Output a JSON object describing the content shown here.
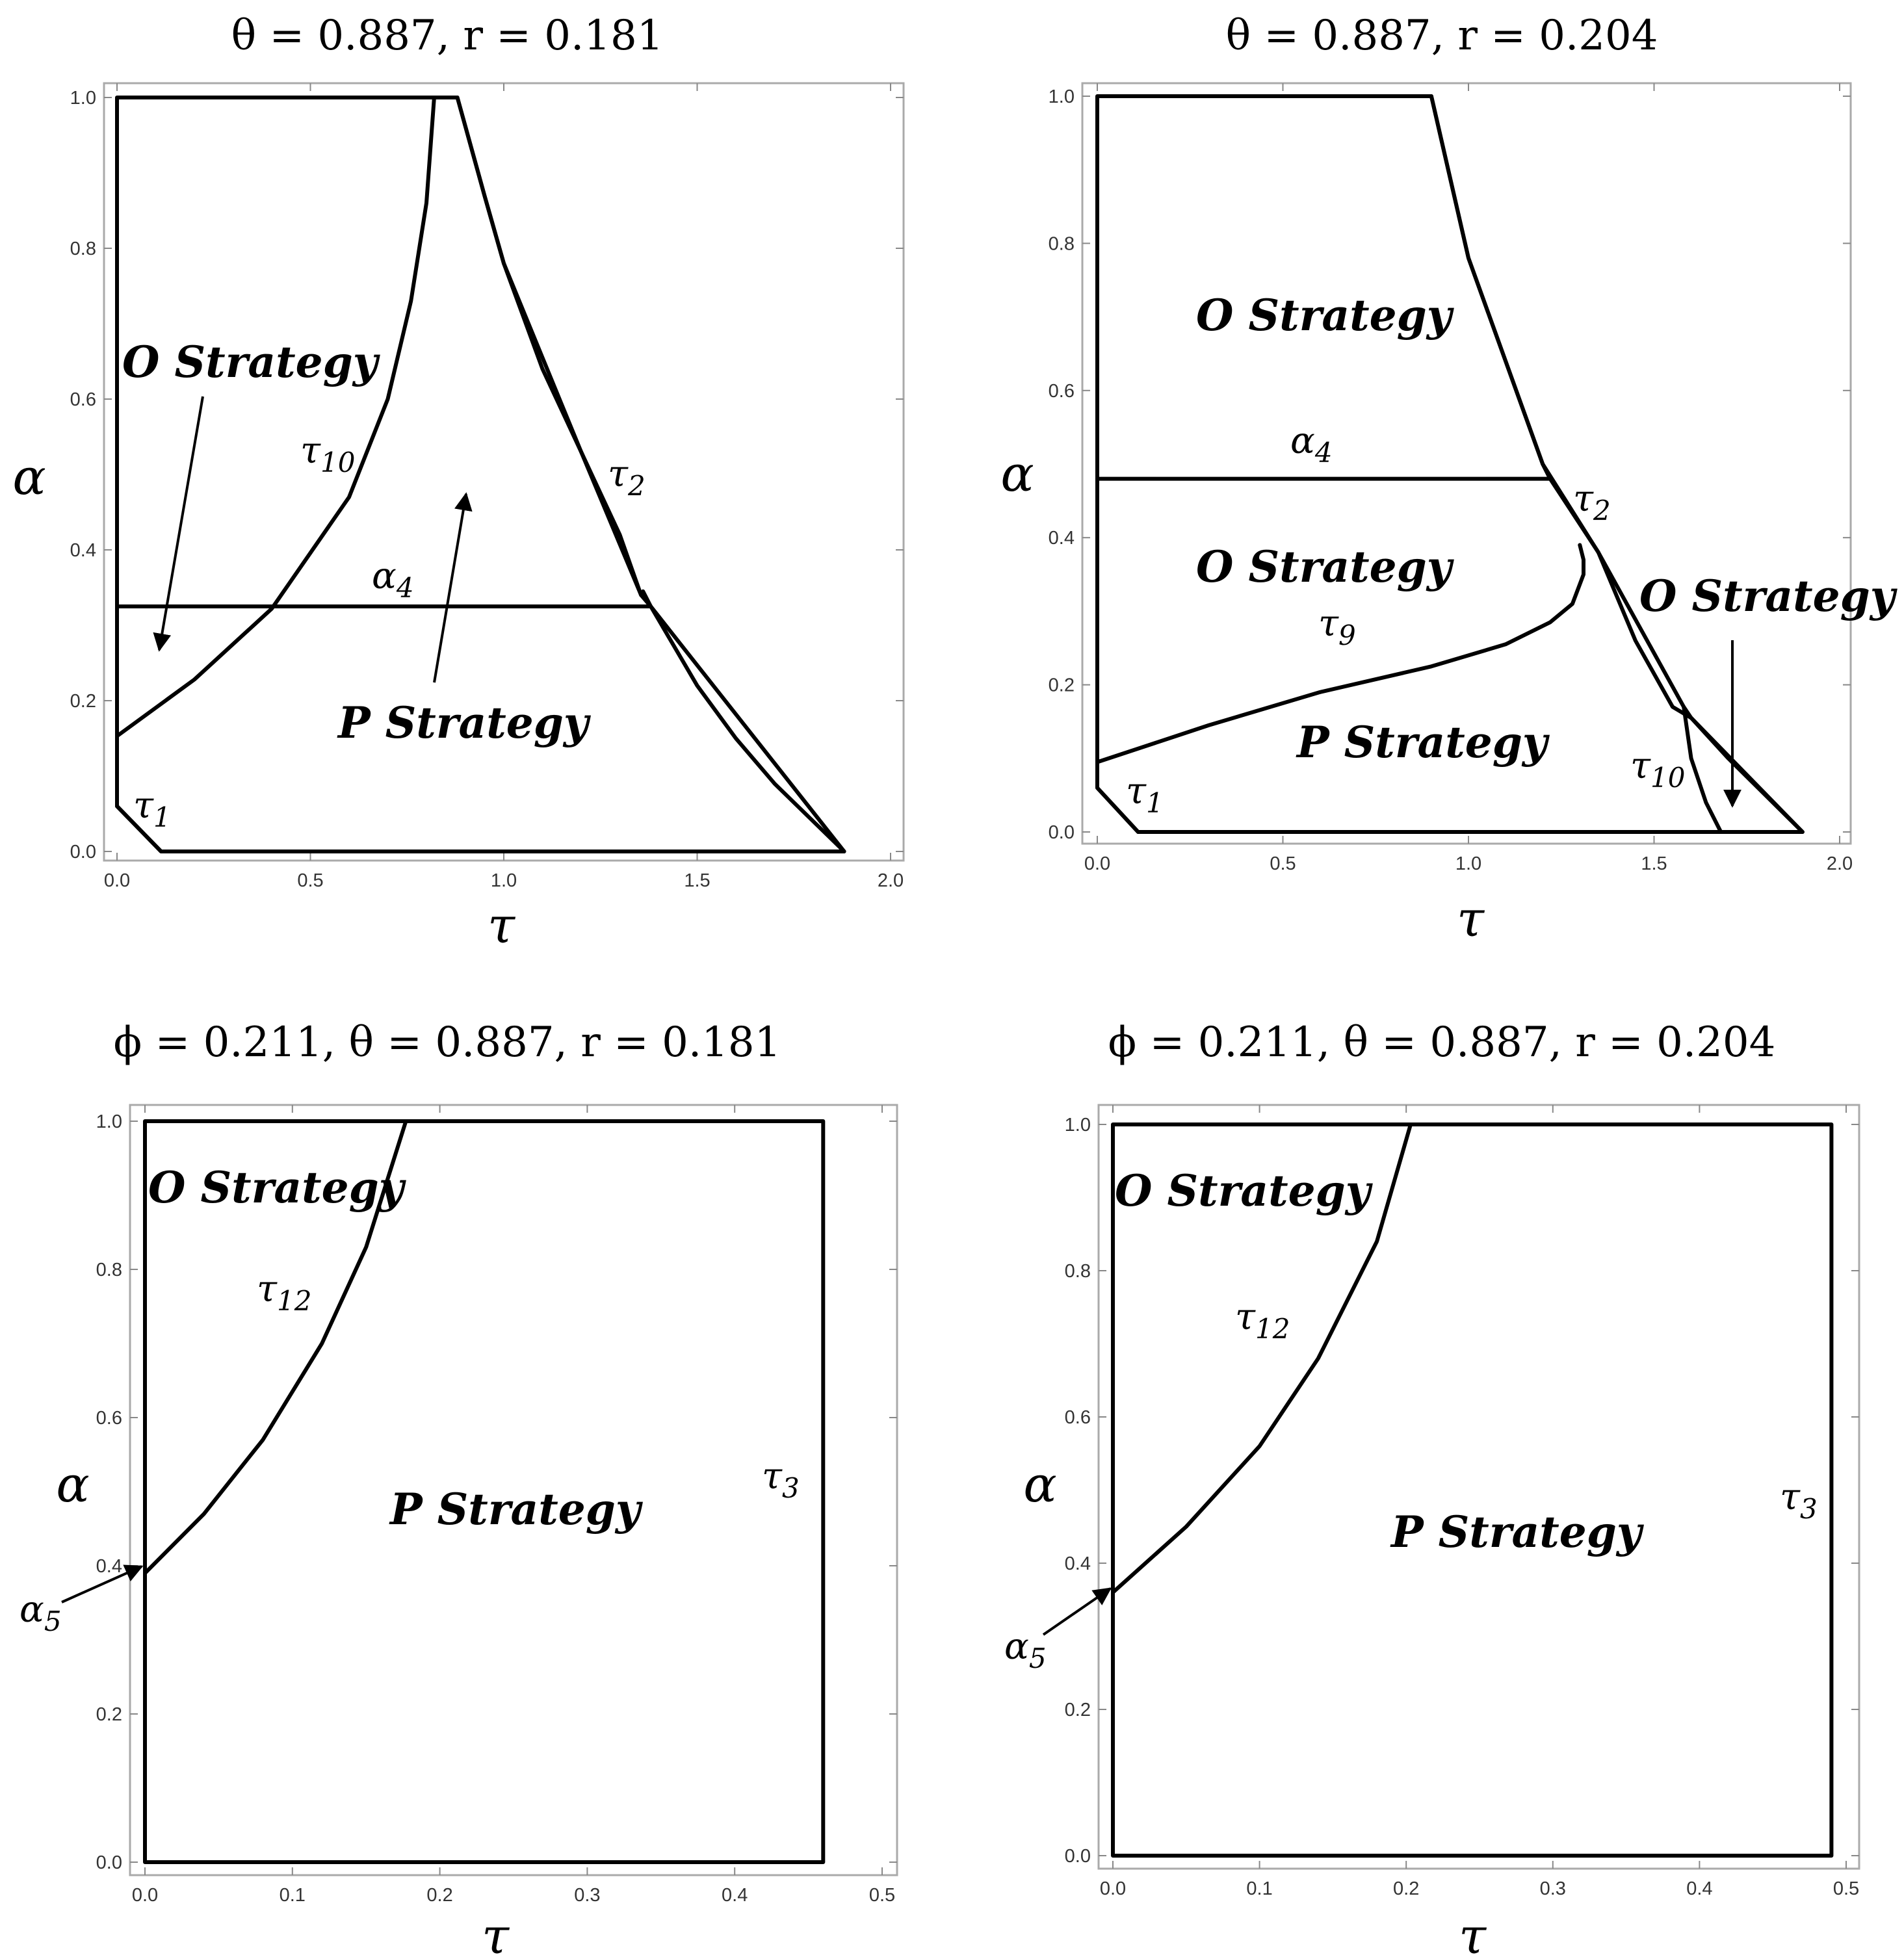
{
  "chart_data": [
    {
      "type": "line",
      "title": "θ = 0.887, r = 0.181",
      "xlabel": "τ",
      "ylabel": "α",
      "xlim": [
        0,
        2.0
      ],
      "ylim": [
        0,
        1.0
      ],
      "xticks": [
        "0.0",
        "0.5",
        "1.0",
        "1.5",
        "2.0"
      ],
      "yticks": [
        "0.0",
        "0.2",
        "0.4",
        "0.6",
        "0.8",
        "1.0"
      ],
      "grid": false,
      "series": [
        {
          "name": "boundary",
          "x": [
            0.0,
            0.0,
            0.114,
            1.88,
            1.38,
            1.36,
            1.355,
            1.2,
            1.0,
            0.95,
            0.88,
            0.82,
            0.0
          ],
          "y": [
            1.0,
            0.06,
            0.0,
            0.0,
            0.325,
            0.345,
            0.34,
            0.53,
            0.78,
            0.87,
            1.0,
            1.0,
            1.0
          ]
        },
        {
          "name": "τ1",
          "x": [
            0.0,
            0.114
          ],
          "y": [
            0.06,
            0.0
          ]
        },
        {
          "name": "τ10",
          "x": [
            0.0,
            0.2,
            0.4,
            0.6,
            0.7,
            0.76,
            0.8,
            0.82
          ],
          "y": [
            0.153,
            0.228,
            0.322,
            0.47,
            0.6,
            0.73,
            0.86,
            1.0
          ]
        },
        {
          "name": "τ2",
          "x": [
            0.88,
            0.95,
            1.0,
            1.1,
            1.2,
            1.3,
            1.355,
            1.38,
            1.5,
            1.6,
            1.7,
            1.8,
            1.88
          ],
          "y": [
            1.0,
            0.87,
            0.78,
            0.64,
            0.53,
            0.42,
            0.34,
            0.325,
            0.22,
            0.15,
            0.09,
            0.04,
            0.0
          ]
        },
        {
          "name": "α4",
          "x": [
            0.0,
            1.38
          ],
          "y": [
            0.325,
            0.325
          ]
        }
      ],
      "labels": [
        {
          "kind": "region",
          "text": "O Strategy"
        },
        {
          "kind": "region",
          "text": "P Strategy"
        },
        {
          "kind": "curve",
          "base": "τ",
          "sub": "10"
        },
        {
          "kind": "curve",
          "base": "τ",
          "sub": "2"
        },
        {
          "kind": "curve",
          "base": "α",
          "sub": "4"
        },
        {
          "kind": "curve",
          "base": "τ",
          "sub": "1"
        }
      ]
    },
    {
      "type": "line",
      "title": "θ = 0.887, r = 0.204",
      "xlabel": "τ",
      "ylabel": "α",
      "xlim": [
        0,
        2.0
      ],
      "ylim": [
        0,
        1.0
      ],
      "xticks": [
        "0.0",
        "0.5",
        "1.0",
        "1.5",
        "2.0"
      ],
      "yticks": [
        "0.0",
        "0.2",
        "0.4",
        "0.6",
        "0.8",
        "1.0"
      ],
      "grid": false,
      "series": [
        {
          "name": "boundary",
          "x": [
            0.0,
            0.0,
            0.11,
            1.9,
            1.6,
            1.58,
            1.35,
            1.22,
            1.2,
            1.0,
            0.9,
            0.0
          ],
          "y": [
            1.0,
            0.06,
            0.0,
            0.0,
            0.155,
            0.17,
            0.38,
            0.48,
            0.5,
            0.78,
            1.0,
            1.0
          ]
        },
        {
          "name": "α4",
          "x": [
            0.0,
            1.22
          ],
          "y": [
            0.48,
            0.48
          ]
        },
        {
          "name": "τ9",
          "x": [
            0.0,
            0.3,
            0.6,
            0.9,
            1.1,
            1.22,
            1.28,
            1.31,
            1.31,
            1.3
          ],
          "y": [
            0.095,
            0.145,
            0.19,
            0.225,
            0.255,
            0.285,
            0.31,
            0.35,
            0.37,
            0.39
          ]
        },
        {
          "name": "τ2",
          "x": [
            0.9,
            1.0,
            1.2,
            1.25,
            1.35,
            1.45,
            1.55,
            1.6,
            1.7,
            1.8,
            1.9
          ],
          "y": [
            1.0,
            0.78,
            0.5,
            0.46,
            0.38,
            0.26,
            0.17,
            0.155,
            0.1,
            0.05,
            0.0
          ]
        },
        {
          "name": "τ10",
          "x": [
            1.58,
            1.6,
            1.64,
            1.68
          ],
          "y": [
            0.17,
            0.1,
            0.04,
            0.0
          ]
        },
        {
          "name": "τ1",
          "x": [
            0.0,
            0.11
          ],
          "y": [
            0.06,
            0.0
          ]
        }
      ],
      "labels": [
        {
          "kind": "region",
          "text": "O Strategy"
        },
        {
          "kind": "region",
          "text": "O Strategy"
        },
        {
          "kind": "region",
          "text": "O Strategy"
        },
        {
          "kind": "region",
          "text": "P Strategy"
        },
        {
          "kind": "curve",
          "base": "α",
          "sub": "4"
        },
        {
          "kind": "curve",
          "base": "τ",
          "sub": "2"
        },
        {
          "kind": "curve",
          "base": "τ",
          "sub": "9"
        },
        {
          "kind": "curve",
          "base": "τ",
          "sub": "10"
        },
        {
          "kind": "curve",
          "base": "τ",
          "sub": "1"
        }
      ]
    },
    {
      "type": "line",
      "title": "ϕ = 0.211, θ = 0.887, r = 0.181",
      "xlabel": "τ",
      "ylabel": "α",
      "xlim": [
        0,
        0.5
      ],
      "ylim": [
        0,
        1.0
      ],
      "xticks": [
        "0.0",
        "0.1",
        "0.2",
        "0.3",
        "0.4",
        "0.5"
      ],
      "yticks": [
        "0.0",
        "0.2",
        "0.4",
        "0.6",
        "0.8",
        "1.0"
      ],
      "grid": false,
      "series": [
        {
          "name": "boundary",
          "x": [
            0.0,
            0.46,
            0.46,
            0.0,
            0.0
          ],
          "y": [
            0.0,
            0.0,
            1.0,
            1.0,
            0.0
          ]
        },
        {
          "name": "τ12",
          "x": [
            0.0,
            0.04,
            0.08,
            0.12,
            0.15,
            0.177
          ],
          "y": [
            0.39,
            0.47,
            0.57,
            0.7,
            0.83,
            1.0
          ]
        }
      ],
      "labels": [
        {
          "kind": "region",
          "text": "O Strategy"
        },
        {
          "kind": "region",
          "text": "P Strategy"
        },
        {
          "kind": "curve",
          "base": "τ",
          "sub": "12"
        },
        {
          "kind": "curve",
          "base": "τ",
          "sub": "3"
        },
        {
          "kind": "curve",
          "base": "α",
          "sub": "5"
        }
      ]
    },
    {
      "type": "line",
      "title": "ϕ = 0.211, θ = 0.887, r = 0.204",
      "xlabel": "τ",
      "ylabel": "α",
      "xlim": [
        0,
        0.5
      ],
      "ylim": [
        0,
        1.0
      ],
      "xticks": [
        "0.0",
        "0.1",
        "0.2",
        "0.3",
        "0.4",
        "0.5"
      ],
      "yticks": [
        "0.0",
        "0.2",
        "0.4",
        "0.6",
        "0.8",
        "1.0"
      ],
      "grid": false,
      "series": [
        {
          "name": "boundary",
          "x": [
            0.0,
            0.49,
            0.49,
            0.0,
            0.0
          ],
          "y": [
            0.0,
            0.0,
            1.0,
            1.0,
            0.0
          ]
        },
        {
          "name": "τ12",
          "x": [
            0.0,
            0.05,
            0.1,
            0.14,
            0.18,
            0.203
          ],
          "y": [
            0.36,
            0.45,
            0.56,
            0.68,
            0.84,
            1.0
          ]
        }
      ],
      "labels": [
        {
          "kind": "region",
          "text": "O Strategy"
        },
        {
          "kind": "region",
          "text": "P Strategy"
        },
        {
          "kind": "curve",
          "base": "τ",
          "sub": "12"
        },
        {
          "kind": "curve",
          "base": "τ",
          "sub": "3"
        },
        {
          "kind": "curve",
          "base": "α",
          "sub": "5"
        }
      ]
    }
  ]
}
